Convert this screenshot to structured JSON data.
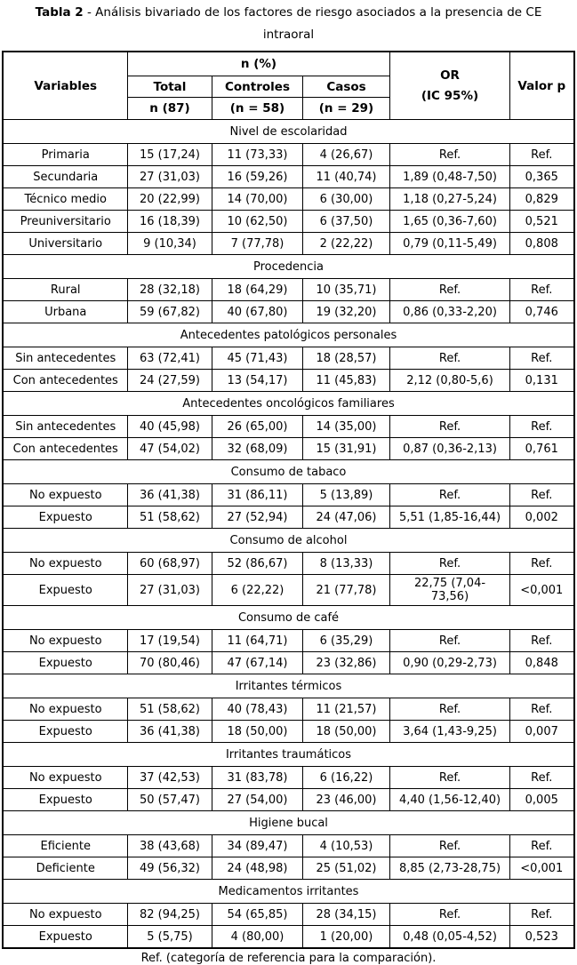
{
  "title": {
    "label": "Tabla 2",
    "text": " - Análisis bivariado de los factores de riesgo asociados a la presencia de CE",
    "line2": "intraoral"
  },
  "header": {
    "variables": "Variables",
    "n_pct": "n (%)",
    "total": "Total",
    "controles": "Controles",
    "casos": "Casos",
    "total_n": "n (87)",
    "controles_n": "(n = 58)",
    "casos_n": "(n = 29)",
    "or_line1": "OR",
    "or_line2": "(IC 95%)",
    "valor_p": "Valor p"
  },
  "sections": [
    {
      "header": "Nivel de escolaridad",
      "rows": [
        {
          "label": "Primaria",
          "total": "15 (17,24)",
          "controles": "11 (73,33)",
          "casos": "4 (26,67)",
          "or": "Ref.",
          "p": "Ref."
        },
        {
          "label": "Secundaria",
          "total": "27 (31,03)",
          "controles": "16 (59,26)",
          "casos": "11 (40,74)",
          "or": "1,89 (0,48-7,50)",
          "p": "0,365"
        },
        {
          "label": "Técnico medio",
          "total": "20 (22,99)",
          "controles": "14 (70,00)",
          "casos": "6 (30,00)",
          "or": "1,18 (0,27-5,24)",
          "p": "0,829"
        },
        {
          "label": "Preuniversitario",
          "total": "16 (18,39)",
          "controles": "10 (62,50)",
          "casos": "6 (37,50)",
          "or": "1,65 (0,36-7,60)",
          "p": "0,521"
        },
        {
          "label": "Universitario",
          "total": "9 (10,34)",
          "controles": "7 (77,78)",
          "casos": "2 (22,22)",
          "or": "0,79 (0,11-5,49)",
          "p": "0,808"
        }
      ]
    },
    {
      "header": "Procedencia",
      "rows": [
        {
          "label": "Rural",
          "total": "28 (32,18)",
          "controles": "18 (64,29)",
          "casos": "10 (35,71)",
          "or": "Ref.",
          "p": "Ref."
        },
        {
          "label": "Urbana",
          "total": "59 (67,82)",
          "controles": "40 (67,80)",
          "casos": "19 (32,20)",
          "or": "0,86 (0,33-2,20)",
          "p": "0,746"
        }
      ]
    },
    {
      "header": "Antecedentes patológicos personales",
      "rows": [
        {
          "label": "Sin antecedentes",
          "total": "63 (72,41)",
          "controles": "45 (71,43)",
          "casos": "18 (28,57)",
          "or": "Ref.",
          "p": "Ref."
        },
        {
          "label": "Con antecedentes",
          "total": "24 (27,59)",
          "controles": "13 (54,17)",
          "casos": "11 (45,83)",
          "or": "2,12 (0,80-5,6)",
          "p": "0,131"
        }
      ]
    },
    {
      "header": "Antecedentes oncológicos familiares",
      "rows": [
        {
          "label": "Sin antecedentes",
          "total": "40 (45,98)",
          "controles": "26 (65,00)",
          "casos": "14 (35,00)",
          "or": "Ref.",
          "p": "Ref."
        },
        {
          "label": "Con antecedentes",
          "total": "47 (54,02)",
          "controles": "32 (68,09)",
          "casos": "15 (31,91)",
          "or": "0,87 (0,36-2,13)",
          "p": "0,761"
        }
      ]
    },
    {
      "header": "Consumo de tabaco",
      "rows": [
        {
          "label": "No expuesto",
          "total": "36 (41,38)",
          "controles": "31 (86,11)",
          "casos": "5 (13,89)",
          "or": "Ref.",
          "p": "Ref."
        },
        {
          "label": "Expuesto",
          "total": "51 (58,62)",
          "controles": "27 (52,94)",
          "casos": "24 (47,06)",
          "or": "5,51 (1,85-16,44)",
          "p": "0,002"
        }
      ]
    },
    {
      "header": "Consumo de alcohol",
      "rows": [
        {
          "label": "No expuesto",
          "total": "60 (68,97)",
          "controles": "52 (86,67)",
          "casos": "8 (13,33)",
          "or": "Ref.",
          "p": "Ref."
        },
        {
          "label": "Expuesto",
          "total": "27 (31,03)",
          "controles": "6 (22,22)",
          "casos": "21 (77,78)",
          "or": "22,75 (7,04-73,56)",
          "p": "<0,001"
        }
      ]
    },
    {
      "header": "Consumo de café",
      "rows": [
        {
          "label": "No expuesto",
          "total": "17 (19,54)",
          "controles": "11 (64,71)",
          "casos": "6 (35,29)",
          "or": "Ref.",
          "p": "Ref."
        },
        {
          "label": "Expuesto",
          "total": "70 (80,46)",
          "controles": "47 (67,14)",
          "casos": "23 (32,86)",
          "or": "0,90 (0,29-2,73)",
          "p": "0,848"
        }
      ]
    },
    {
      "header": "Irritantes térmicos",
      "rows": [
        {
          "label": "No expuesto",
          "total": "51 (58,62)",
          "controles": "40 (78,43)",
          "casos": "11 (21,57)",
          "or": "Ref.",
          "p": "Ref."
        },
        {
          "label": "Expuesto",
          "total": "36 (41,38)",
          "controles": "18 (50,00)",
          "casos": "18 (50,00)",
          "or": "3,64 (1,43-9,25)",
          "p": "0,007"
        }
      ]
    },
    {
      "header": "Irritantes traumáticos",
      "rows": [
        {
          "label": "No expuesto",
          "total": "37 (42,53)",
          "controles": "31 (83,78)",
          "casos": "6 (16,22)",
          "or": "Ref.",
          "p": "Ref."
        },
        {
          "label": "Expuesto",
          "total": "50 (57,47)",
          "controles": "27 (54,00)",
          "casos": "23 (46,00)",
          "or": "4,40 (1,56-12,40)",
          "p": "0,005"
        }
      ]
    },
    {
      "header": "Higiene bucal",
      "rows": [
        {
          "label": "Eficiente",
          "total": "38 (43,68)",
          "controles": "34 (89,47)",
          "casos": "4 (10,53)",
          "or": "Ref.",
          "p": "Ref."
        },
        {
          "label": "Deficiente",
          "total": "49 (56,32)",
          "controles": "24 (48,98)",
          "casos": "25 (51,02)",
          "or": "8,85 (2,73-28,75)",
          "p": "<0,001"
        }
      ]
    },
    {
      "header": "Medicamentos irritantes",
      "rows": [
        {
          "label": "No expuesto",
          "total": "82 (94,25)",
          "controles": "54 (65,85)",
          "casos": "28 (34,15)",
          "or": "Ref.",
          "p": "Ref."
        },
        {
          "label": "Expuesto",
          "total": "5 (5,75)",
          "controles": "4 (80,00)",
          "casos": "1 (20,00)",
          "or": "0,48 (0,05-4,52)",
          "p": "0,523"
        }
      ]
    }
  ],
  "footnote": "Ref. (categoría de referencia para la comparación)."
}
